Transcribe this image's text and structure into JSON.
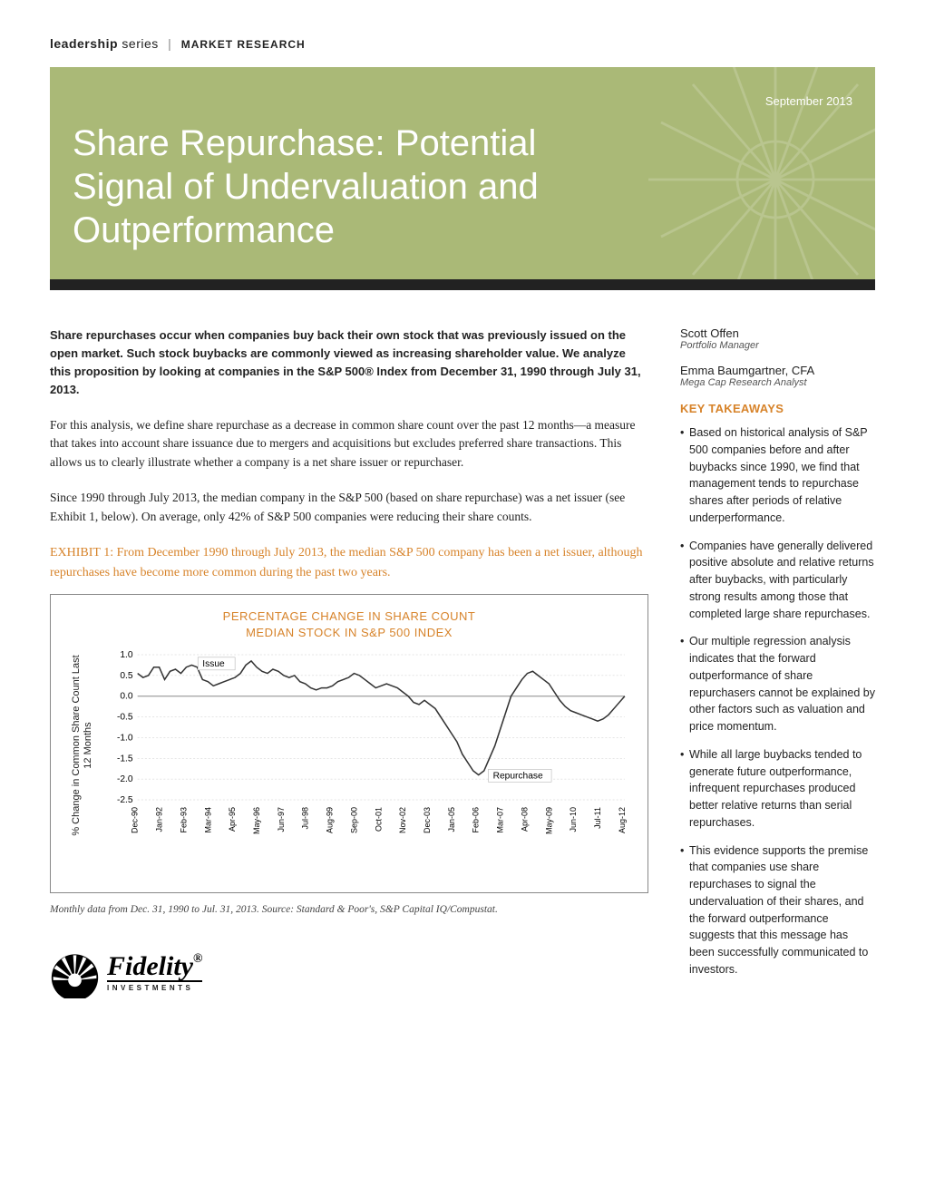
{
  "header": {
    "series_bold": "leadership",
    "series_light": "series",
    "category": "MARKET RESEARCH"
  },
  "banner": {
    "date": "September 2013",
    "title": "Share Repurchase: Potential Signal of Undervaluation and Outperformance",
    "bg_color": "#aab977",
    "text_color": "#ffffff"
  },
  "intro": "Share repurchases occur when companies buy back their own stock that was previously issued on the open market. Such stock buybacks are commonly viewed as increasing shareholder value. We analyze this proposition by looking at companies in the S&P 500® Index from December 31, 1990 through July 31, 2013.",
  "paragraphs": [
    "For this analysis, we define share repurchase as a decrease in common share count over the past 12 months—a measure that takes into account share issuance due to mergers and acquisitions but excludes preferred share transactions. This allows us to clearly illustrate whether a company is a net share issuer or repurchaser.",
    "Since 1990 through July 2013, the median company in the S&P 500 (based on share repurchase) was a net issuer (see Exhibit 1, below). On average, only 42% of S&P 500 companies were reducing their share counts."
  ],
  "exhibit_caption": "EXHIBIT 1: From December 1990 through July 2013, the median S&P 500 company has been a net issuer, although repurchases have become more common during the past two years.",
  "chart": {
    "title_line1": "PERCENTAGE CHANGE IN SHARE COUNT",
    "title_line2": "MEDIAN STOCK IN S&P 500 INDEX",
    "y_label": "% Change in Common Share Count Last 12 Months",
    "y_min": -2.5,
    "y_max": 1.0,
    "y_ticks": [
      1.0,
      0.5,
      0.0,
      -0.5,
      -1.0,
      -1.5,
      -2.0,
      -2.5
    ],
    "x_labels": [
      "Dec-90",
      "Jan-92",
      "Feb-93",
      "Mar-94",
      "Apr-95",
      "May-96",
      "Jun-97",
      "Jul-98",
      "Aug-99",
      "Sep-00",
      "Oct-01",
      "Nov-02",
      "Dec-03",
      "Jan-05",
      "Feb-06",
      "Mar-07",
      "Apr-08",
      "May-09",
      "Jun-10",
      "Jul-11",
      "Aug-12"
    ],
    "annotation_issue": "Issue",
    "annotation_repurchase": "Repurchase",
    "line_color": "#333333",
    "grid_color": "#cccccc",
    "accent_color": "#d7832a",
    "data": [
      0.55,
      0.45,
      0.5,
      0.7,
      0.7,
      0.4,
      0.6,
      0.65,
      0.55,
      0.7,
      0.75,
      0.7,
      0.4,
      0.35,
      0.25,
      0.3,
      0.35,
      0.4,
      0.45,
      0.55,
      0.75,
      0.85,
      0.7,
      0.6,
      0.55,
      0.65,
      0.6,
      0.5,
      0.45,
      0.5,
      0.35,
      0.3,
      0.2,
      0.15,
      0.2,
      0.2,
      0.25,
      0.35,
      0.4,
      0.45,
      0.55,
      0.5,
      0.4,
      0.3,
      0.2,
      0.25,
      0.3,
      0.25,
      0.2,
      0.1,
      0.0,
      -0.15,
      -0.2,
      -0.1,
      -0.2,
      -0.3,
      -0.5,
      -0.7,
      -0.9,
      -1.1,
      -1.4,
      -1.6,
      -1.8,
      -1.9,
      -1.8,
      -1.5,
      -1.2,
      -0.8,
      -0.4,
      0.0,
      0.2,
      0.4,
      0.55,
      0.6,
      0.5,
      0.4,
      0.3,
      0.1,
      -0.1,
      -0.25,
      -0.35,
      -0.4,
      -0.45,
      -0.5,
      -0.55,
      -0.6,
      -0.55,
      -0.45,
      -0.3,
      -0.15,
      0.0
    ]
  },
  "source_note": "Monthly data from Dec. 31, 1990 to Jul. 31, 2013. Source: Standard & Poor's, S&P Capital IQ/Compustat.",
  "authors": [
    {
      "name": "Scott Offen",
      "title": "Portfolio Manager"
    },
    {
      "name": "Emma Baumgartner, CFA",
      "title": "Mega Cap Research Analyst"
    }
  ],
  "takeaways_heading": "KEY TAKEAWAYS",
  "takeaways": [
    "Based on historical analysis of S&P 500 companies before and after buybacks since 1990, we find that management tends to repurchase shares after periods of relative underperformance.",
    "Companies have generally delivered positive absolute and relative returns after buybacks, with particularly strong results among those that completed large share repurchases.",
    "Our multiple regression analysis indicates that the forward outperformance of share repurchasers cannot be explained by other factors such as valuation and price momentum.",
    "While all large buybacks tended to generate future outperformance, infrequent repurchases produced better relative returns than serial repurchases.",
    "This evidence supports the premise that companies use share repurchases to signal the undervaluation of their shares, and the forward outperformance suggests that this message has been successfully communicated to investors."
  ],
  "logo": {
    "main": "Fidelity",
    "sub": "INVESTMENTS"
  }
}
